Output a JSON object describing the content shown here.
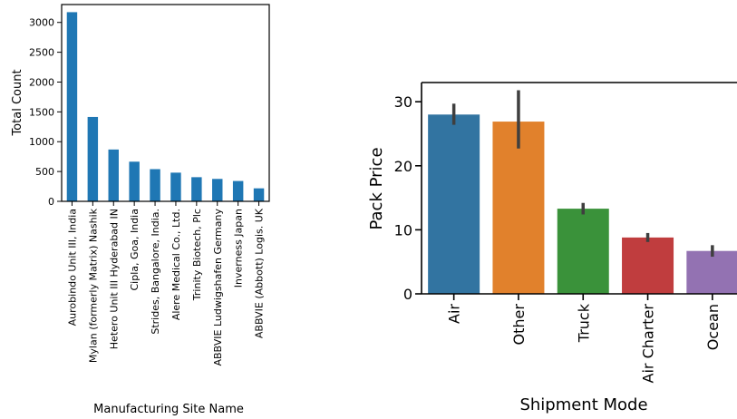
{
  "chart_data": [
    {
      "type": "bar",
      "xlabel": "Manufacturing Site Name",
      "ylabel": "Total Count",
      "ylim": [
        0,
        3300
      ],
      "yticks": [
        0,
        500,
        1000,
        1500,
        2000,
        2500,
        3000
      ],
      "categories": [
        "Aurobindo Unit III, India",
        "Mylan (formerly Matrix) Nashik",
        "Hetero Unit III Hyderabad IN",
        "Cipla, Goa, India",
        "Strides, Bangalore, India.",
        "Alere Medical Co., Ltd.",
        "Trinity Biotech, Plc",
        "ABBVIE Ludwigshafen Germany",
        "Inverness Japan",
        "ABBVIE (Abbott) Logis. UK"
      ],
      "values": [
        3172,
        1415,
        869,
        665,
        540,
        481,
        405,
        376,
        341,
        218
      ],
      "color": "#1f77b4",
      "grid": false
    },
    {
      "type": "bar",
      "xlabel": "Shipment Mode",
      "ylabel": "Pack Price",
      "ylim": [
        0,
        33
      ],
      "yticks": [
        0,
        10,
        20,
        30
      ],
      "categories": [
        "Air",
        "Other",
        "Truck",
        "Air Charter",
        "Ocean"
      ],
      "values": [
        28.0,
        26.9,
        13.3,
        8.8,
        6.7
      ],
      "error_low": [
        26.4,
        22.7,
        12.4,
        8.1,
        5.8
      ],
      "error_high": [
        29.7,
        31.8,
        14.2,
        9.5,
        7.6
      ],
      "colors": [
        "#3274a1",
        "#e1812c",
        "#3a923a",
        "#c03d3e",
        "#9372b2"
      ],
      "error_color": "#3f3f3f",
      "grid": false
    }
  ]
}
